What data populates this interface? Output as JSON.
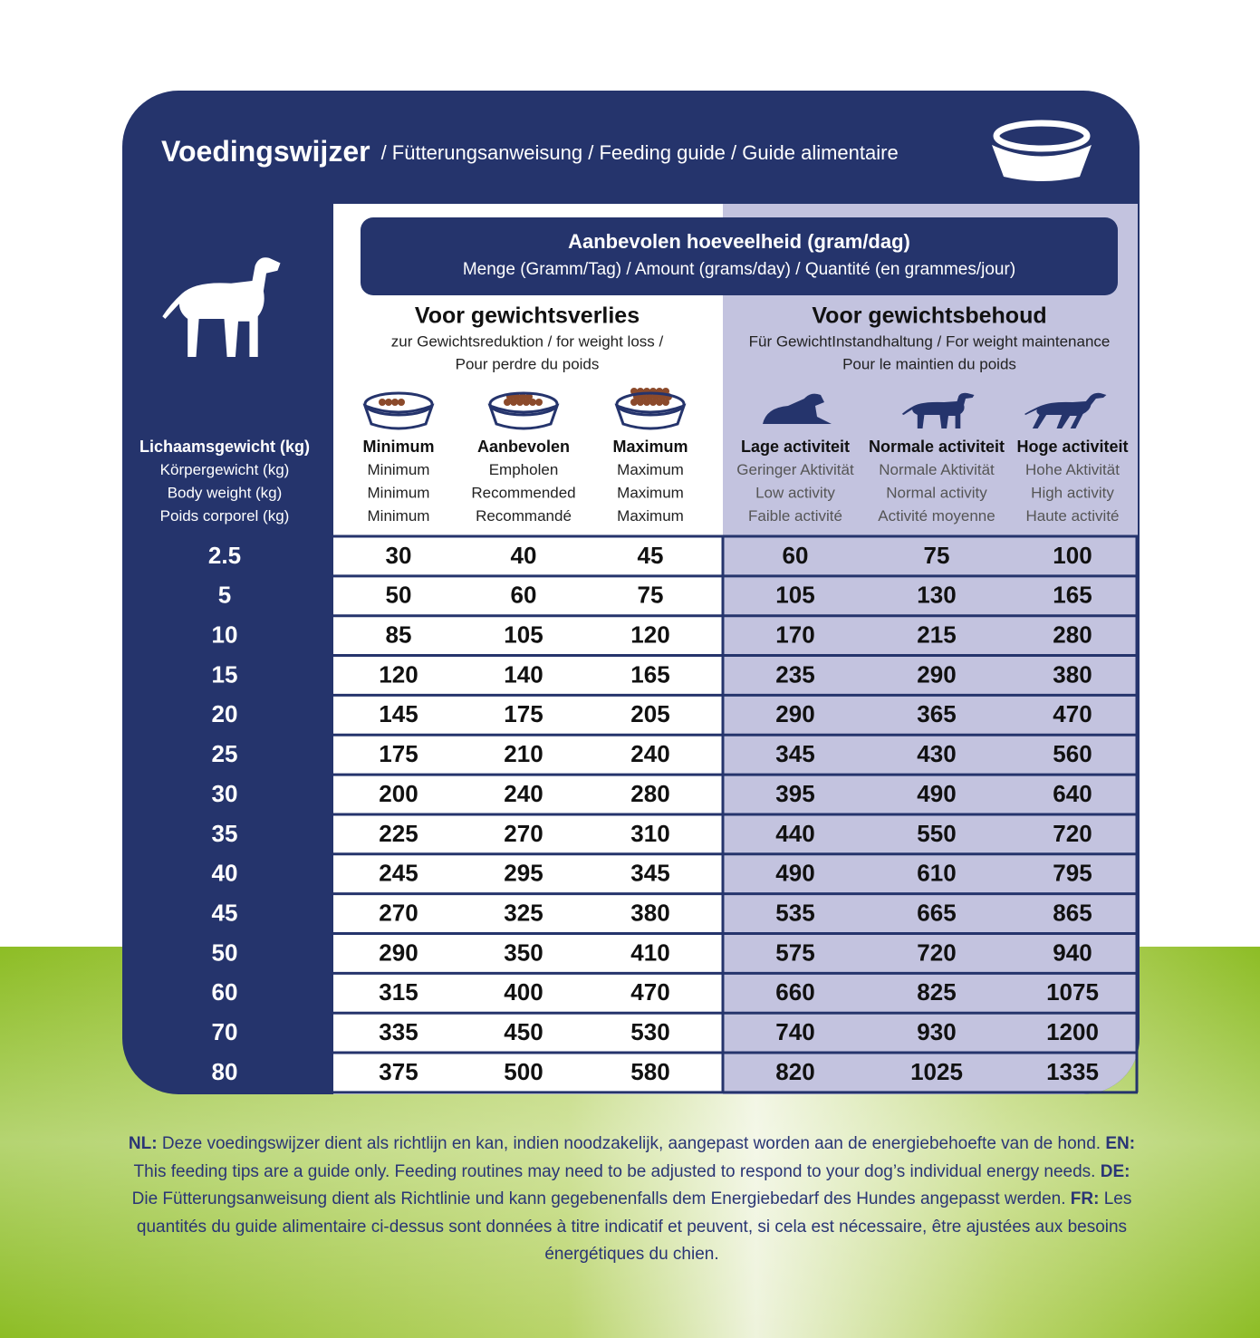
{
  "header": {
    "title": "Voedingswijzer",
    "subtitle": "/ Fütterungsanweisung / Feeding guide / Guide alimentaire"
  },
  "amount": {
    "title": "Aanbevolen hoeveelheid (gram/dag)",
    "subtitle": "Menge (Gramm/Tag) / Amount (grams/day) / Quantité (en grammes/jour)"
  },
  "groups": [
    {
      "title": "Voor gewichtsverlies",
      "lines": [
        "zur Gewichtsreduktion / for weight loss /",
        "Pour perdre du poids"
      ]
    },
    {
      "title": "Voor gewichtsbehoud",
      "lines": [
        "Für GewichtInstandhaltung / For weight maintenance",
        "Pour le maintien du poids"
      ]
    }
  ],
  "weight_header": [
    "Lichaamsgewicht (kg)",
    "Körpergewicht (kg)",
    "Body weight (kg)",
    "Poids corporel (kg)"
  ],
  "columns": [
    [
      "Minimum",
      "Minimum",
      "Minimum",
      "Minimum"
    ],
    [
      "Aanbevolen",
      "Empholen",
      "Recommended",
      "Recommandé"
    ],
    [
      "Maximum",
      "Maximum",
      "Maximum",
      "Maximum"
    ],
    [
      "Lage activiteit",
      "Geringer Aktivität",
      "Low activity",
      "Faible activité"
    ],
    [
      "Normale activiteit",
      "Normale Aktivität",
      "Normal activity",
      "Activité moyenne"
    ],
    [
      "Hoge activiteit",
      "Hohe Aktivität",
      "High activity",
      "Haute activité"
    ]
  ],
  "table": {
    "rows": [
      [
        2.5,
        30,
        40,
        45,
        60,
        75,
        100
      ],
      [
        5,
        50,
        60,
        75,
        105,
        130,
        165
      ],
      [
        10,
        85,
        105,
        120,
        170,
        215,
        280
      ],
      [
        15,
        120,
        140,
        165,
        235,
        290,
        380
      ],
      [
        20,
        145,
        175,
        205,
        290,
        365,
        470
      ],
      [
        25,
        175,
        210,
        240,
        345,
        430,
        560
      ],
      [
        30,
        200,
        240,
        280,
        395,
        490,
        640
      ],
      [
        35,
        225,
        270,
        310,
        440,
        550,
        720
      ],
      [
        40,
        245,
        295,
        345,
        490,
        610,
        795
      ],
      [
        45,
        270,
        325,
        380,
        535,
        665,
        865
      ],
      [
        50,
        290,
        350,
        410,
        575,
        720,
        940
      ],
      [
        60,
        315,
        400,
        470,
        660,
        825,
        1075
      ],
      [
        70,
        335,
        450,
        530,
        740,
        930,
        1200
      ],
      [
        80,
        375,
        500,
        580,
        820,
        1025,
        1335
      ]
    ]
  },
  "note": [
    {
      "label": "NL:",
      "text": "Deze voedingswijzer dient als richtlijn en kan, indien noodzakelijk, aangepast worden aan de energiebehoefte van de hond."
    },
    {
      "label": "EN:",
      "text": "This feeding tips are a guide only. Feeding routines may need to be adjusted to respond to your dog’s individual energy needs."
    },
    {
      "label": "DE:",
      "text": "Die Fütterungsanweisung dient als Richtlinie und kann gegebenenfalls dem Energiebedarf des Hundes angepasst werden."
    },
    {
      "label": "FR:",
      "text": "Les quantités du guide alimentaire ci-dessus sont données à titre indicatif et peuvent, si cela est nécessaire, être ajustées aux besoins énergétiques du chien."
    }
  ]
}
